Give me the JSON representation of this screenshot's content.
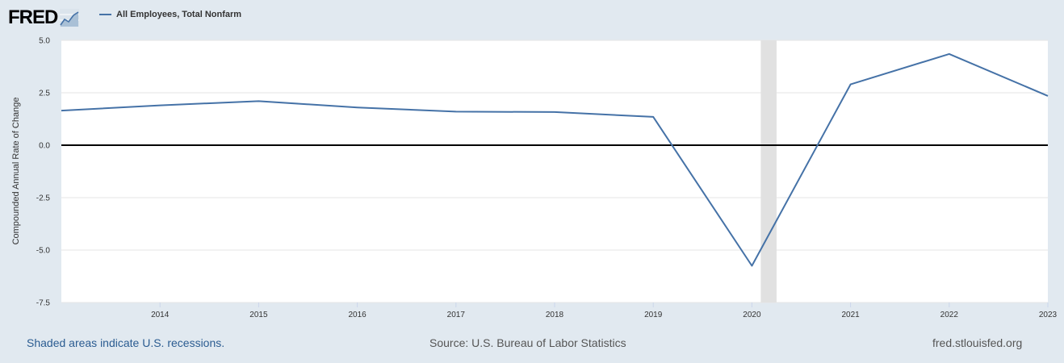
{
  "header": {
    "logo_text": "FRED",
    "logo_icon": "line-chart-icon",
    "legend_label": "All Employees, Total Nonfarm"
  },
  "colors": {
    "background": "#e1e9f0",
    "plot_background": "#ffffff",
    "series": "#4572a7",
    "recession_shade": "#e1e1e1",
    "zero_line": "#000000",
    "grid": "#e6e6e6"
  },
  "chart_data": {
    "type": "line",
    "ylabel": "Compounded Annual Rate of Change",
    "xlabel": "",
    "ylim": [
      -7.5,
      5.0
    ],
    "xlim": [
      2013.0,
      2023.0
    ],
    "yticks": [
      "5.0",
      "2.5",
      "0.0",
      "-2.5",
      "-5.0",
      "-7.5"
    ],
    "xticks": [
      "2014",
      "2015",
      "2016",
      "2017",
      "2018",
      "2019",
      "2020",
      "2021",
      "2022",
      "2023"
    ],
    "grid": true,
    "zero_line": 0.0,
    "recessions": [
      {
        "start": 2020.09,
        "end": 2020.25
      }
    ],
    "series": [
      {
        "name": "All Employees, Total Nonfarm",
        "x": [
          2013,
          2014,
          2015,
          2016,
          2017,
          2018,
          2019,
          2020,
          2021,
          2022,
          2023
        ],
        "values": [
          1.65,
          1.9,
          2.1,
          1.8,
          1.6,
          1.58,
          1.35,
          -5.75,
          2.9,
          4.35,
          2.35
        ]
      }
    ]
  },
  "footer": {
    "recession_note": "Shaded areas indicate U.S. recessions.",
    "source": "Source: U.S. Bureau of Labor Statistics",
    "site": "fred.stlouisfed.org"
  }
}
